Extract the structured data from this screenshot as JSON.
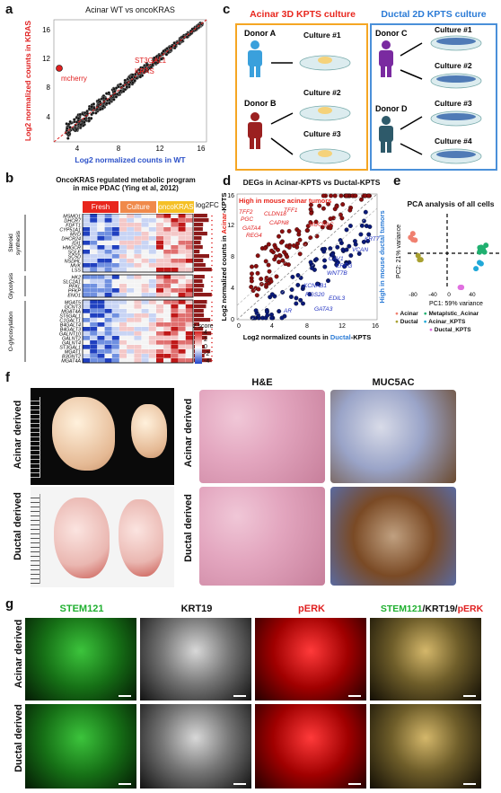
{
  "panel_labels": {
    "a": "a",
    "b": "b",
    "c": "c",
    "d": "d",
    "e": "e",
    "f": "f",
    "g": "g"
  },
  "panel_a": {
    "title": "Acinar WT vs oncoKRAS",
    "xlabel": "Log2 normalized counts in WT",
    "ylabel": "Log2 normalized counts in KRAS",
    "annotations": [
      "ST3GAL1",
      "KRAS",
      "mcherry"
    ],
    "xticks": [
      "4",
      "8",
      "12",
      "16"
    ],
    "yticks": [
      "4",
      "8",
      "12",
      "16"
    ]
  },
  "panel_b": {
    "title_line1": "OncoKRAS regulated metabolic program",
    "title_line2": "in mice PDAC (Ying et al, 2012)",
    "columns": [
      "Fresh",
      "Culture",
      "oncoKRAS"
    ],
    "fc_label": "log2FC",
    "groups": [
      {
        "name": "Steroid synthesis",
        "genes": [
          "MSMO1",
          "DHCR7",
          "FDFT1",
          "CYP51A1",
          "MVD",
          "DHCR24",
          "IDI1",
          "HMGCR",
          "SQLE",
          "SC5D",
          "NSDHL",
          "MVK",
          "LSS"
        ]
      },
      {
        "name": "Glycolysis",
        "genes": [
          "HK2",
          "SLC2A1",
          "PFKL",
          "PFKP",
          "ENO1"
        ]
      },
      {
        "name": "O-glycosylation",
        "genes": [
          "MGAT5",
          "GCNT3",
          "MGAT4A",
          "ST6GAL1",
          "C1GALT1",
          "B4GALT4",
          "B4GALT3",
          "GALNT10",
          "GALNT2",
          "GALNT4",
          "ST3GAL1",
          "MGAT1",
          "B3GNT2",
          "MGAT4A"
        ]
      }
    ],
    "zscore_label": "z score",
    "zscore_ticks": [
      "4",
      "2",
      "0",
      "-2",
      "-4"
    ]
  },
  "panel_c": {
    "acinar_title": "Acinar 3D KPTS culture",
    "ductal_title": "Ductal 2D KPTS culture",
    "donors": [
      "Donor A",
      "Donor B",
      "Donor C",
      "Donor D"
    ],
    "acinar_cultures": [
      "Culture #1",
      "Culture #2",
      "Culture #3"
    ],
    "ductal_cultures": [
      "Culture #1",
      "Culture #2",
      "Culture #3",
      "Culture #4"
    ]
  },
  "panel_d": {
    "title": "DEGs in Acinar-KPTS vs Ductal-KPTS",
    "high_acinar": "High in mouse acinar tumors",
    "high_ductal": "High in mouse ductal tumors",
    "xlabel_prefix": "Log2 normalized counts in ",
    "xlabel_colored": "Ductal",
    "xlabel_suffix": "-KPTS",
    "ylabel_prefix": "Log2 normalized counts in ",
    "ylabel_colored": "Acinar",
    "ylabel_suffix": "-KPTS",
    "red_genes": [
      "TFF2",
      "CLDN18",
      "TFF1",
      "PGC",
      "GATA4",
      "CAPN8",
      "REG4",
      "MUC5AC"
    ],
    "blue_genes": [
      "KRT7",
      "VCAN",
      "CAV1",
      "EREG",
      "WNT7B",
      "KCNAB1",
      "RGS20",
      "AR",
      "GATA3",
      "EDIL3"
    ],
    "xticks": [
      "0",
      "4",
      "8",
      "12",
      "16"
    ],
    "yticks": [
      "0",
      "4",
      "8",
      "12",
      "16"
    ]
  },
  "panel_e": {
    "title": "PCA analysis of all cells",
    "xlabel": "PC1: 59% variance",
    "ylabel": "PC2: 21% variance",
    "xticks": [
      "-80",
      "-40",
      "0",
      "40"
    ],
    "legend": [
      {
        "label": "Acinar",
        "color": "#f08070"
      },
      {
        "label": "Ductal",
        "color": "#a8a030"
      },
      {
        "label": "Metaplstic_Acinar",
        "color": "#20b070"
      },
      {
        "label": "Acinar_KPTS",
        "color": "#20a8d8"
      },
      {
        "label": "Ductal_KPTS",
        "color": "#e070e0"
      }
    ]
  },
  "panel_f": {
    "row_labels": [
      "Acinar derived",
      "Ductal derived"
    ],
    "col_headers": [
      "H&E",
      "MUC5AC"
    ]
  },
  "panel_g": {
    "col_headers": [
      "STEM121",
      "KRT19",
      "pERK"
    ],
    "merge_parts": [
      "STEM121",
      "/KRT19/",
      "pERK"
    ],
    "row_labels": [
      "Acinar derived",
      "Ductal derived"
    ]
  },
  "colors": {
    "acinar_red": "#e8261d",
    "ductal_blue": "#2b7bd6",
    "orange_box": "#f5a623",
    "blue_box": "#4a90d9"
  }
}
